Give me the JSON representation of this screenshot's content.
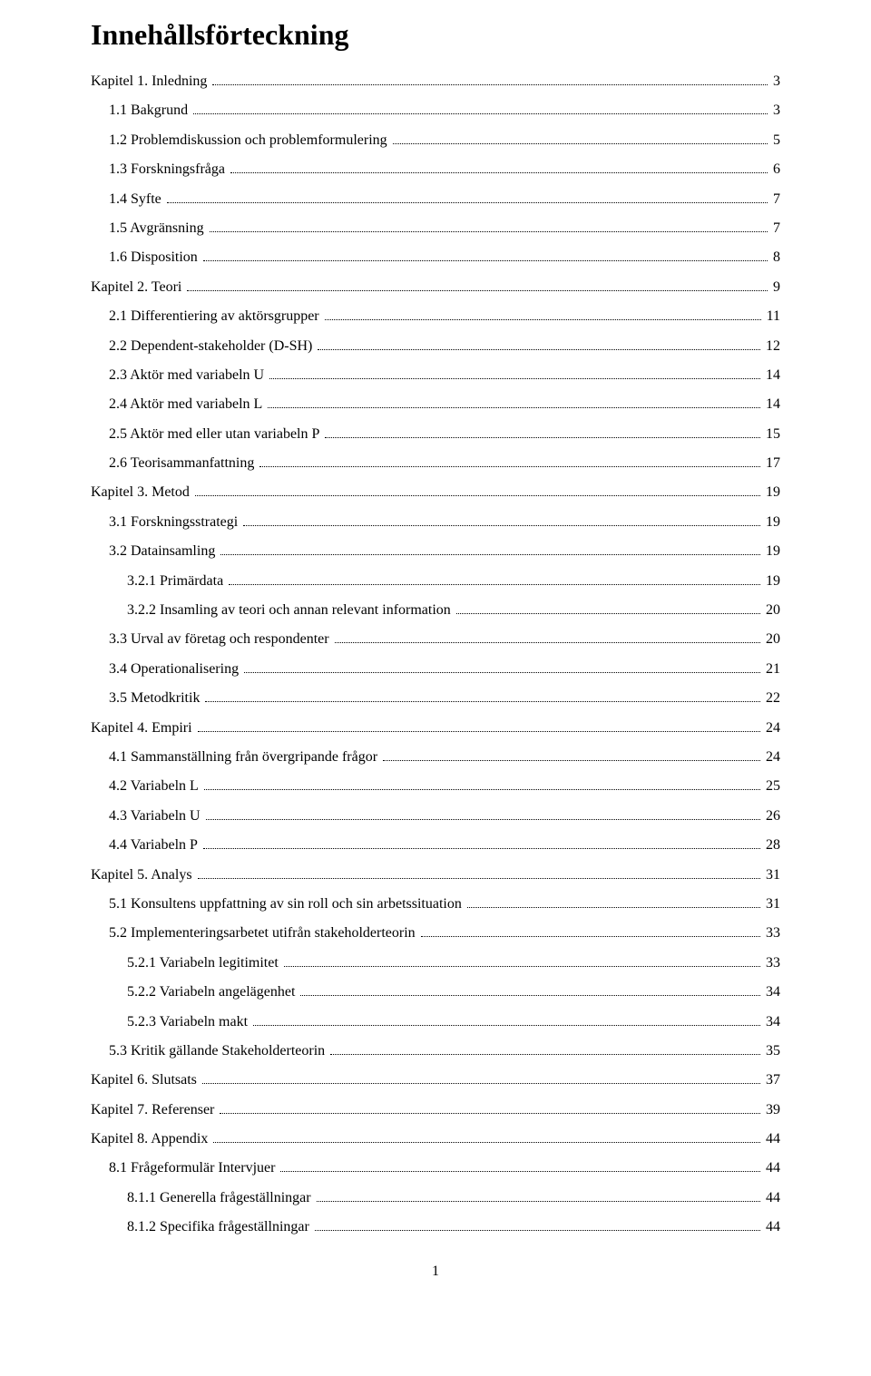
{
  "title": "Innehållsförteckning",
  "page_number": "1",
  "toc": [
    {
      "label": "Kapitel 1. Inledning",
      "page": "3",
      "indent": 0
    },
    {
      "label": "1.1 Bakgrund",
      "page": "3",
      "indent": 1
    },
    {
      "label": "1.2 Problemdiskussion och problemformulering",
      "page": "5",
      "indent": 1
    },
    {
      "label": "1.3 Forskningsfråga",
      "page": "6",
      "indent": 1
    },
    {
      "label": "1.4  Syfte",
      "page": "7",
      "indent": 1
    },
    {
      "label": "1.5 Avgränsning",
      "page": "7",
      "indent": 1
    },
    {
      "label": "1.6 Disposition",
      "page": "8",
      "indent": 1
    },
    {
      "label": "Kapitel 2. Teori",
      "page": "9",
      "indent": 0
    },
    {
      "label": "2.1 Differentiering av aktörsgrupper",
      "page": "11",
      "indent": 1
    },
    {
      "label": "2.2 Dependent-stakeholder (D-SH)",
      "page": "12",
      "indent": 1
    },
    {
      "label": "2.3 Aktör med variabeln U",
      "page": "14",
      "indent": 1
    },
    {
      "label": "2.4 Aktör med variabeln L",
      "page": "14",
      "indent": 1
    },
    {
      "label": "2.5 Aktör med eller utan variabeln P",
      "page": "15",
      "indent": 1
    },
    {
      "label": "2.6 Teorisammanfattning",
      "page": "17",
      "indent": 1
    },
    {
      "label": "Kapitel 3. Metod",
      "page": "19",
      "indent": 0
    },
    {
      "label": "3.1 Forskningsstrategi",
      "page": "19",
      "indent": 1
    },
    {
      "label": "3.2 Datainsamling",
      "page": "19",
      "indent": 1
    },
    {
      "label": "3.2.1 Primärdata",
      "page": "19",
      "indent": 2
    },
    {
      "label": "3.2.2 Insamling av teori och annan relevant information",
      "page": "20",
      "indent": 2
    },
    {
      "label": "3.3 Urval av företag och respondenter",
      "page": "20",
      "indent": 1
    },
    {
      "label": "3.4 Operationalisering",
      "page": "21",
      "indent": 1
    },
    {
      "label": "3.5 Metodkritik",
      "page": "22",
      "indent": 1
    },
    {
      "label": "Kapitel 4. Empiri",
      "page": "24",
      "indent": 0
    },
    {
      "label": "4.1 Sammanställning från övergripande frågor",
      "page": "24",
      "indent": 1
    },
    {
      "label": "4.2 Variabeln L",
      "page": "25",
      "indent": 1
    },
    {
      "label": "4.3 Variabeln U",
      "page": "26",
      "indent": 1
    },
    {
      "label": "4.4 Variabeln P",
      "page": "28",
      "indent": 1
    },
    {
      "label": "Kapitel 5. Analys",
      "page": "31",
      "indent": 0
    },
    {
      "label": "5.1 Konsultens uppfattning av sin roll och sin arbetssituation",
      "page": "31",
      "indent": 1
    },
    {
      "label": "5.2 Implementeringsarbetet utifrån stakeholderteorin",
      "page": "33",
      "indent": 1
    },
    {
      "label": "5.2.1 Variabeln legitimitet",
      "page": "33",
      "indent": 2
    },
    {
      "label": "5.2.2 Variabeln angelägenhet",
      "page": "34",
      "indent": 2
    },
    {
      "label": "5.2.3 Variabeln makt",
      "page": "34",
      "indent": 2
    },
    {
      "label": "5.3 Kritik gällande Stakeholderteorin",
      "page": "35",
      "indent": 1
    },
    {
      "label": "Kapitel 6. Slutsats",
      "page": "37",
      "indent": 0
    },
    {
      "label": "Kapitel 7. Referenser",
      "page": "39",
      "indent": 0
    },
    {
      "label": "Kapitel 8. Appendix",
      "page": "44",
      "indent": 0
    },
    {
      "label": "8.1 Frågeformulär Intervjuer",
      "page": "44",
      "indent": 1
    },
    {
      "label": "8.1.1 Generella frågeställningar",
      "page": "44",
      "indent": 2
    },
    {
      "label": "8.1.2 Specifika frågeställningar",
      "page": "44",
      "indent": 2
    }
  ]
}
